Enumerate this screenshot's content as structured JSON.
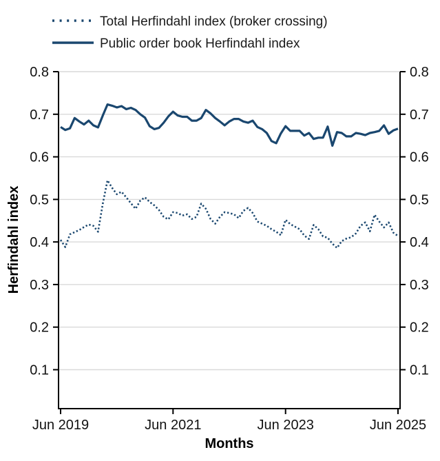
{
  "colors": {
    "line": "#1a476f",
    "grid": "#d9d9d9",
    "axis": "#000000",
    "background": "#ffffff",
    "text": "#111111"
  },
  "chart_data": {
    "type": "line",
    "title": "",
    "xlabel": "Months",
    "ylabel": "Herfindahl index",
    "ylim": [
      0,
      0.8
    ],
    "grid": "horizontal",
    "legend_position": "top-left",
    "dual_y_axis": true,
    "yticks": [
      0.1,
      0.2,
      0.3,
      0.4,
      0.5,
      0.6,
      0.7,
      0.8
    ],
    "ytick_labels": [
      "0.1",
      "0.2",
      "0.3",
      "0.4",
      "0.5",
      "0.6",
      "0.7",
      "0.8"
    ],
    "x_unit": "month",
    "x_start": "Jun 2019",
    "x_end": "Jun 2025",
    "xtick_labels": [
      "Jun 2019",
      "Jun 2021",
      "Jun 2023",
      "Jun 2025"
    ],
    "xtick_month_index": [
      0,
      24,
      48,
      72
    ],
    "series": [
      {
        "name": "Total Herfindahl index (broker crossing)",
        "style": "dotted",
        "color": "#1a476f",
        "values": [
          0.405,
          0.388,
          0.418,
          0.423,
          0.428,
          0.435,
          0.441,
          0.438,
          0.424,
          0.49,
          0.545,
          0.527,
          0.512,
          0.518,
          0.505,
          0.491,
          0.478,
          0.497,
          0.505,
          0.494,
          0.486,
          0.475,
          0.459,
          0.453,
          0.47,
          0.468,
          0.462,
          0.465,
          0.454,
          0.459,
          0.49,
          0.478,
          0.454,
          0.443,
          0.459,
          0.47,
          0.468,
          0.465,
          0.456,
          0.473,
          0.48,
          0.468,
          0.448,
          0.443,
          0.438,
          0.43,
          0.424,
          0.416,
          0.452,
          0.442,
          0.436,
          0.43,
          0.415,
          0.407,
          0.44,
          0.43,
          0.413,
          0.41,
          0.396,
          0.386,
          0.402,
          0.408,
          0.411,
          0.42,
          0.438,
          0.446,
          0.425,
          0.464,
          0.448,
          0.434,
          0.446,
          0.422,
          0.414
        ]
      },
      {
        "name": "Public order book Herfindahl index",
        "style": "solid",
        "color": "#1a476f",
        "values": [
          0.67,
          0.663,
          0.667,
          0.691,
          0.683,
          0.676,
          0.685,
          0.674,
          0.669,
          0.697,
          0.723,
          0.72,
          0.716,
          0.719,
          0.712,
          0.715,
          0.71,
          0.7,
          0.692,
          0.672,
          0.665,
          0.668,
          0.68,
          0.695,
          0.706,
          0.697,
          0.694,
          0.694,
          0.685,
          0.685,
          0.691,
          0.71,
          0.702,
          0.691,
          0.683,
          0.674,
          0.683,
          0.689,
          0.689,
          0.683,
          0.68,
          0.685,
          0.67,
          0.665,
          0.656,
          0.637,
          0.632,
          0.655,
          0.672,
          0.661,
          0.661,
          0.661,
          0.65,
          0.656,
          0.642,
          0.645,
          0.645,
          0.671,
          0.626,
          0.658,
          0.656,
          0.648,
          0.648,
          0.656,
          0.654,
          0.651,
          0.656,
          0.658,
          0.661,
          0.674,
          0.654,
          0.662,
          0.666
        ]
      }
    ]
  }
}
